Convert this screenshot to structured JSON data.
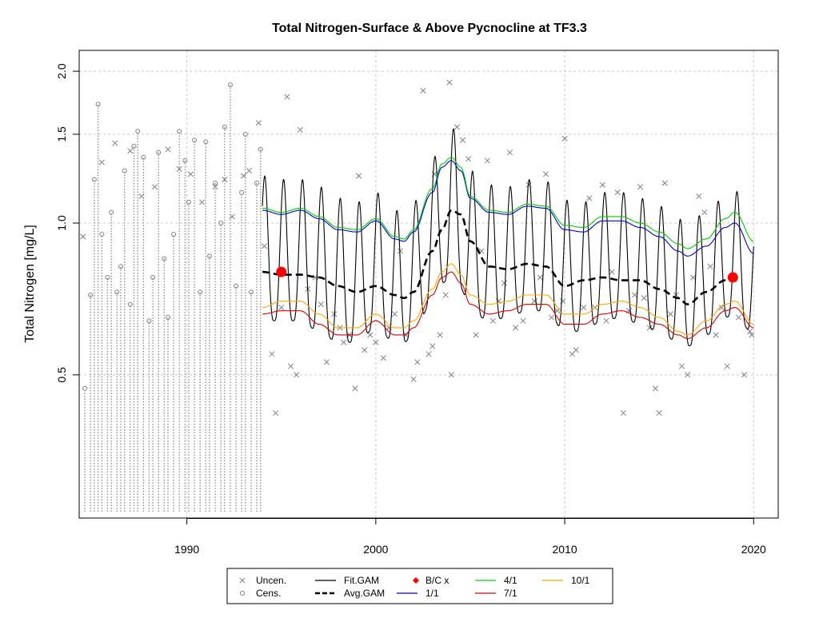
{
  "chart_data": {
    "type": "line",
    "title": "Total Nitrogen-Surface & Above Pycnocline at TF3.3",
    "xlabel": "",
    "ylabel": "Total Nitrogen [mg/L]",
    "y_scale": "log",
    "xlim": [
      1984.3,
      2021.3
    ],
    "ylim": [
      0.26,
      2.2
    ],
    "x_ticks": [
      1990,
      2000,
      2010,
      2020
    ],
    "y_ticks": [
      0.5,
      1.0,
      1.5,
      2.0
    ],
    "y_tick_labels": [
      "0.5",
      "1.0",
      "1.5",
      "2.0"
    ],
    "grid": true,
    "legend": {
      "placement": "bottom",
      "entries": [
        {
          "label": "Uncen.",
          "symbol": "x",
          "color": "#808080"
        },
        {
          "label": "Cens.",
          "symbol": "circle",
          "color": "#808080"
        },
        {
          "label": "Fit.GAM",
          "symbol": "line",
          "color": "#000000"
        },
        {
          "label": "Avg.GAM",
          "symbol": "dashed",
          "color": "#000000"
        },
        {
          "label": "B/C x",
          "symbol": "diamond",
          "color": "#ff0000"
        },
        {
          "label": "1/1",
          "symbol": "line",
          "color": "#0000cd"
        },
        {
          "label": "4/1",
          "symbol": "line",
          "color": "#00cc00"
        },
        {
          "label": "7/1",
          "symbol": "line",
          "color": "#dd0000"
        },
        {
          "label": "10/1",
          "symbol": "line",
          "color": "#ffa500"
        }
      ]
    },
    "series": [
      {
        "name": "Avg.GAM",
        "style": "dashed",
        "color": "#000000",
        "x": [
          1994.0,
          1995.0,
          1996.0,
          1997.0,
          1998.0,
          1999.0,
          2000.0,
          2001.0,
          2001.5,
          2002.0,
          2003.0,
          2003.5,
          2004.0,
          2004.5,
          2005.0,
          2006.0,
          2007.0,
          2008.0,
          2009.0,
          2010.0,
          2011.0,
          2012.0,
          2013.0,
          2014.0,
          2015.0,
          2016.0,
          2016.5,
          2017.5,
          2018.5,
          2019.0
        ],
        "y": [
          0.8,
          0.79,
          0.79,
          0.78,
          0.75,
          0.73,
          0.75,
          0.72,
          0.71,
          0.73,
          0.88,
          0.97,
          1.06,
          1.04,
          0.92,
          0.82,
          0.81,
          0.83,
          0.82,
          0.75,
          0.77,
          0.78,
          0.77,
          0.77,
          0.74,
          0.71,
          0.69,
          0.73,
          0.77,
          0.78
        ]
      },
      {
        "name": "1/1",
        "color": "#0000cd",
        "x": [
          1994.0,
          1995.0,
          1996.0,
          1997.0,
          1998.0,
          1999.0,
          2000.0,
          2001.0,
          2001.5,
          2002.0,
          2003.0,
          2003.5,
          2004.0,
          2004.5,
          2005.0,
          2006.0,
          2007.0,
          2008.0,
          2009.0,
          2010.0,
          2011.0,
          2012.0,
          2013.0,
          2014.0,
          2015.0,
          2016.0,
          2016.5,
          2017.5,
          2018.5,
          2019.0,
          2020.0
        ],
        "y": [
          1.06,
          1.04,
          1.06,
          1.02,
          0.97,
          0.96,
          1.01,
          0.93,
          0.92,
          0.96,
          1.15,
          1.29,
          1.33,
          1.27,
          1.12,
          1.05,
          1.04,
          1.08,
          1.07,
          0.97,
          0.96,
          1.01,
          1.01,
          0.98,
          0.94,
          0.88,
          0.86,
          0.9,
          0.98,
          1.0,
          0.87
        ]
      },
      {
        "name": "4/1",
        "color": "#00cc00",
        "x": [
          1994.0,
          1995.0,
          1996.0,
          1997.0,
          1998.0,
          1999.0,
          2000.0,
          2001.0,
          2001.5,
          2002.0,
          2003.0,
          2003.5,
          2004.0,
          2004.5,
          2005.0,
          2006.0,
          2007.0,
          2008.0,
          2009.0,
          2010.0,
          2011.0,
          2012.0,
          2013.0,
          2014.0,
          2015.0,
          2016.0,
          2016.5,
          2017.5,
          2018.5,
          2019.0,
          2020.0
        ],
        "y": [
          1.07,
          1.05,
          1.07,
          1.03,
          0.98,
          0.97,
          1.02,
          0.94,
          0.93,
          0.97,
          1.17,
          1.31,
          1.35,
          1.29,
          1.13,
          1.06,
          1.05,
          1.09,
          1.08,
          0.99,
          0.98,
          1.03,
          1.03,
          1.0,
          0.96,
          0.91,
          0.89,
          0.93,
          1.02,
          1.05,
          0.92
        ]
      },
      {
        "name": "7/1",
        "color": "#dd0000",
        "x": [
          1994.0,
          1995.0,
          1996.0,
          1997.0,
          1998.0,
          1999.0,
          2000.0,
          2001.0,
          2001.5,
          2002.0,
          2003.0,
          2003.5,
          2004.0,
          2004.5,
          2005.0,
          2006.0,
          2007.0,
          2008.0,
          2009.0,
          2010.0,
          2011.0,
          2012.0,
          2013.0,
          2014.0,
          2015.0,
          2016.0,
          2016.5,
          2017.5,
          2018.5,
          2019.0,
          2020.0
        ],
        "y": [
          0.66,
          0.67,
          0.67,
          0.63,
          0.6,
          0.6,
          0.64,
          0.6,
          0.6,
          0.62,
          0.72,
          0.78,
          0.8,
          0.76,
          0.69,
          0.66,
          0.67,
          0.69,
          0.69,
          0.63,
          0.63,
          0.66,
          0.67,
          0.65,
          0.63,
          0.6,
          0.59,
          0.62,
          0.67,
          0.68,
          0.62
        ]
      },
      {
        "name": "10/1",
        "color": "#ffa500",
        "x": [
          1994.0,
          1995.0,
          1996.0,
          1997.0,
          1998.0,
          1999.0,
          2000.0,
          2001.0,
          2001.5,
          2002.0,
          2003.0,
          2003.5,
          2004.0,
          2004.5,
          2005.0,
          2006.0,
          2007.0,
          2008.0,
          2009.0,
          2010.0,
          2011.0,
          2012.0,
          2013.0,
          2014.0,
          2015.0,
          2016.0,
          2016.5,
          2017.5,
          2018.5,
          2019.0,
          2020.0
        ],
        "y": [
          0.68,
          0.7,
          0.7,
          0.66,
          0.62,
          0.62,
          0.66,
          0.62,
          0.62,
          0.64,
          0.74,
          0.8,
          0.83,
          0.79,
          0.72,
          0.69,
          0.7,
          0.72,
          0.72,
          0.66,
          0.66,
          0.69,
          0.7,
          0.68,
          0.65,
          0.61,
          0.6,
          0.64,
          0.69,
          0.7,
          0.63
        ]
      },
      {
        "name": "Fit.GAM",
        "color": "#000000",
        "seasonal": true,
        "x": [
          1994.0,
          1995.0,
          1996.0,
          1997.0,
          1998.0,
          1999.0,
          2000.0,
          2001.0,
          2001.5,
          2002.0,
          2003.0,
          2003.5,
          2004.0,
          2004.5,
          2005.0,
          2006.0,
          2007.0,
          2008.0,
          2009.0,
          2010.0,
          2011.0,
          2012.0,
          2013.0,
          2014.0,
          2015.0,
          2016.0,
          2016.5,
          2017.5,
          2018.5,
          2019.0,
          2020.0
        ],
        "peak": [
          1.24,
          1.22,
          1.22,
          1.18,
          1.12,
          1.1,
          1.15,
          1.06,
          1.05,
          1.1,
          1.33,
          1.5,
          1.55,
          1.45,
          1.27,
          1.19,
          1.18,
          1.22,
          1.21,
          1.11,
          1.1,
          1.15,
          1.15,
          1.12,
          1.08,
          1.02,
          1.0,
          1.05,
          1.13,
          1.16,
          1.0
        ],
        "trough": [
          0.64,
          0.64,
          0.64,
          0.61,
          0.58,
          0.58,
          0.62,
          0.58,
          0.58,
          0.6,
          0.7,
          0.76,
          0.78,
          0.74,
          0.67,
          0.64,
          0.65,
          0.67,
          0.67,
          0.61,
          0.61,
          0.64,
          0.65,
          0.63,
          0.61,
          0.58,
          0.57,
          0.6,
          0.65,
          0.66,
          0.6
        ]
      }
    ],
    "bc_points": {
      "label": "B/C x",
      "color": "#ff0000",
      "x": [
        1995.0,
        2018.9
      ],
      "y": [
        0.8,
        0.78
      ]
    },
    "uncensored_obs": {
      "x": [
        1984.5,
        1985.5,
        1986.2,
        1987.0,
        1987.6,
        1988.3,
        1989.0,
        1989.6,
        1990.2,
        1990.8,
        1991.5,
        1992.0,
        1992.4,
        1993.0,
        1993.3,
        1993.8,
        1994.1,
        1994.5,
        1994.7,
        1995.0,
        1995.3,
        1995.5,
        1995.8,
        1996.0,
        1996.4,
        1996.8,
        1997.1,
        1997.4,
        1997.8,
        1998.1,
        1998.3,
        1998.6,
        1998.9,
        1999.1,
        1999.4,
        1999.7,
        2000.0,
        2000.4,
        2000.7,
        2001.0,
        2001.3,
        2001.6,
        2002.0,
        2002.2,
        2002.5,
        2002.8,
        2003.0,
        2003.1,
        2003.4,
        2003.7,
        2003.9,
        2004.0,
        2004.3,
        2004.6,
        2004.9,
        2005.3,
        2005.6,
        2005.9,
        2006.2,
        2006.5,
        2006.8,
        2007.1,
        2007.4,
        2007.8,
        2008.1,
        2008.4,
        2008.7,
        2009.0,
        2009.3,
        2009.6,
        2009.9,
        2010.0,
        2010.4,
        2010.6,
        2011.0,
        2011.3,
        2011.6,
        2012.0,
        2012.2,
        2012.5,
        2012.8,
        2013.1,
        2013.4,
        2013.7,
        2014.0,
        2014.2,
        2014.5,
        2014.8,
        2015.0,
        2015.3,
        2015.6,
        2015.9,
        2016.2,
        2016.5,
        2016.8,
        2017.1,
        2017.4,
        2017.7,
        2018.0,
        2018.3,
        2018.6,
        2018.9,
        2019.2,
        2019.5,
        2019.8,
        2019.9
      ],
      "y": [
        0.94,
        1.32,
        1.44,
        1.39,
        1.13,
        1.18,
        1.4,
        1.28,
        1.25,
        1.1,
        1.18,
        1.22,
        1.03,
        1.24,
        1.27,
        1.58,
        0.9,
        0.55,
        0.42,
        0.68,
        1.78,
        0.52,
        0.5,
        1.53,
        0.74,
        0.78,
        0.69,
        0.53,
        0.66,
        0.62,
        0.58,
        0.6,
        0.47,
        1.24,
        0.56,
        0.6,
        0.58,
        0.54,
        0.62,
        0.66,
        0.88,
        0.6,
        0.49,
        0.53,
        1.83,
        0.55,
        0.57,
        1.25,
        0.6,
        0.72,
        1.9,
        0.5,
        1.55,
        1.46,
        1.34,
        0.6,
        0.88,
        1.33,
        0.64,
        0.7,
        0.76,
        1.38,
        0.62,
        0.64,
        1.19,
        0.7,
        0.78,
        1.25,
        0.65,
        0.67,
        0.7,
        1.47,
        0.55,
        0.56,
        0.68,
        1.12,
        0.68,
        1.19,
        0.64,
        0.8,
        1.15,
        0.42,
        0.67,
        0.72,
        1.18,
        0.71,
        0.62,
        0.47,
        0.42,
        1.2,
        0.66,
        0.72,
        0.52,
        0.5,
        0.78,
        1.13,
        1.05,
        0.82,
        0.6,
        0.68,
        0.52,
        0.78,
        0.65,
        0.5,
        0.61,
        0.6
      ]
    },
    "censored_obs": {
      "x": [
        1984.6,
        1984.9,
        1985.1,
        1985.3,
        1985.5,
        1985.8,
        1986.0,
        1986.3,
        1986.5,
        1986.7,
        1987.0,
        1987.2,
        1987.4,
        1987.7,
        1988.0,
        1988.2,
        1988.5,
        1988.8,
        1989.0,
        1989.3,
        1989.6,
        1989.9,
        1990.1,
        1990.4,
        1990.7,
        1991.0,
        1991.2,
        1991.5,
        1991.8,
        1992.0,
        1992.3,
        1992.6,
        1992.9,
        1993.1,
        1993.4,
        1993.7,
        1993.9
      ],
      "y": [
        0.47,
        0.72,
        1.22,
        1.72,
        0.95,
        0.78,
        1.05,
        0.73,
        0.82,
        1.27,
        0.69,
        1.42,
        1.52,
        1.35,
        0.64,
        0.78,
        1.38,
        0.85,
        0.65,
        0.95,
        1.52,
        1.33,
        1.1,
        1.46,
        0.73,
        1.45,
        0.86,
        1.2,
        1.0,
        1.55,
        1.88,
        0.75,
        1.15,
        1.5,
        0.73,
        1.2,
        1.4
      ]
    }
  }
}
